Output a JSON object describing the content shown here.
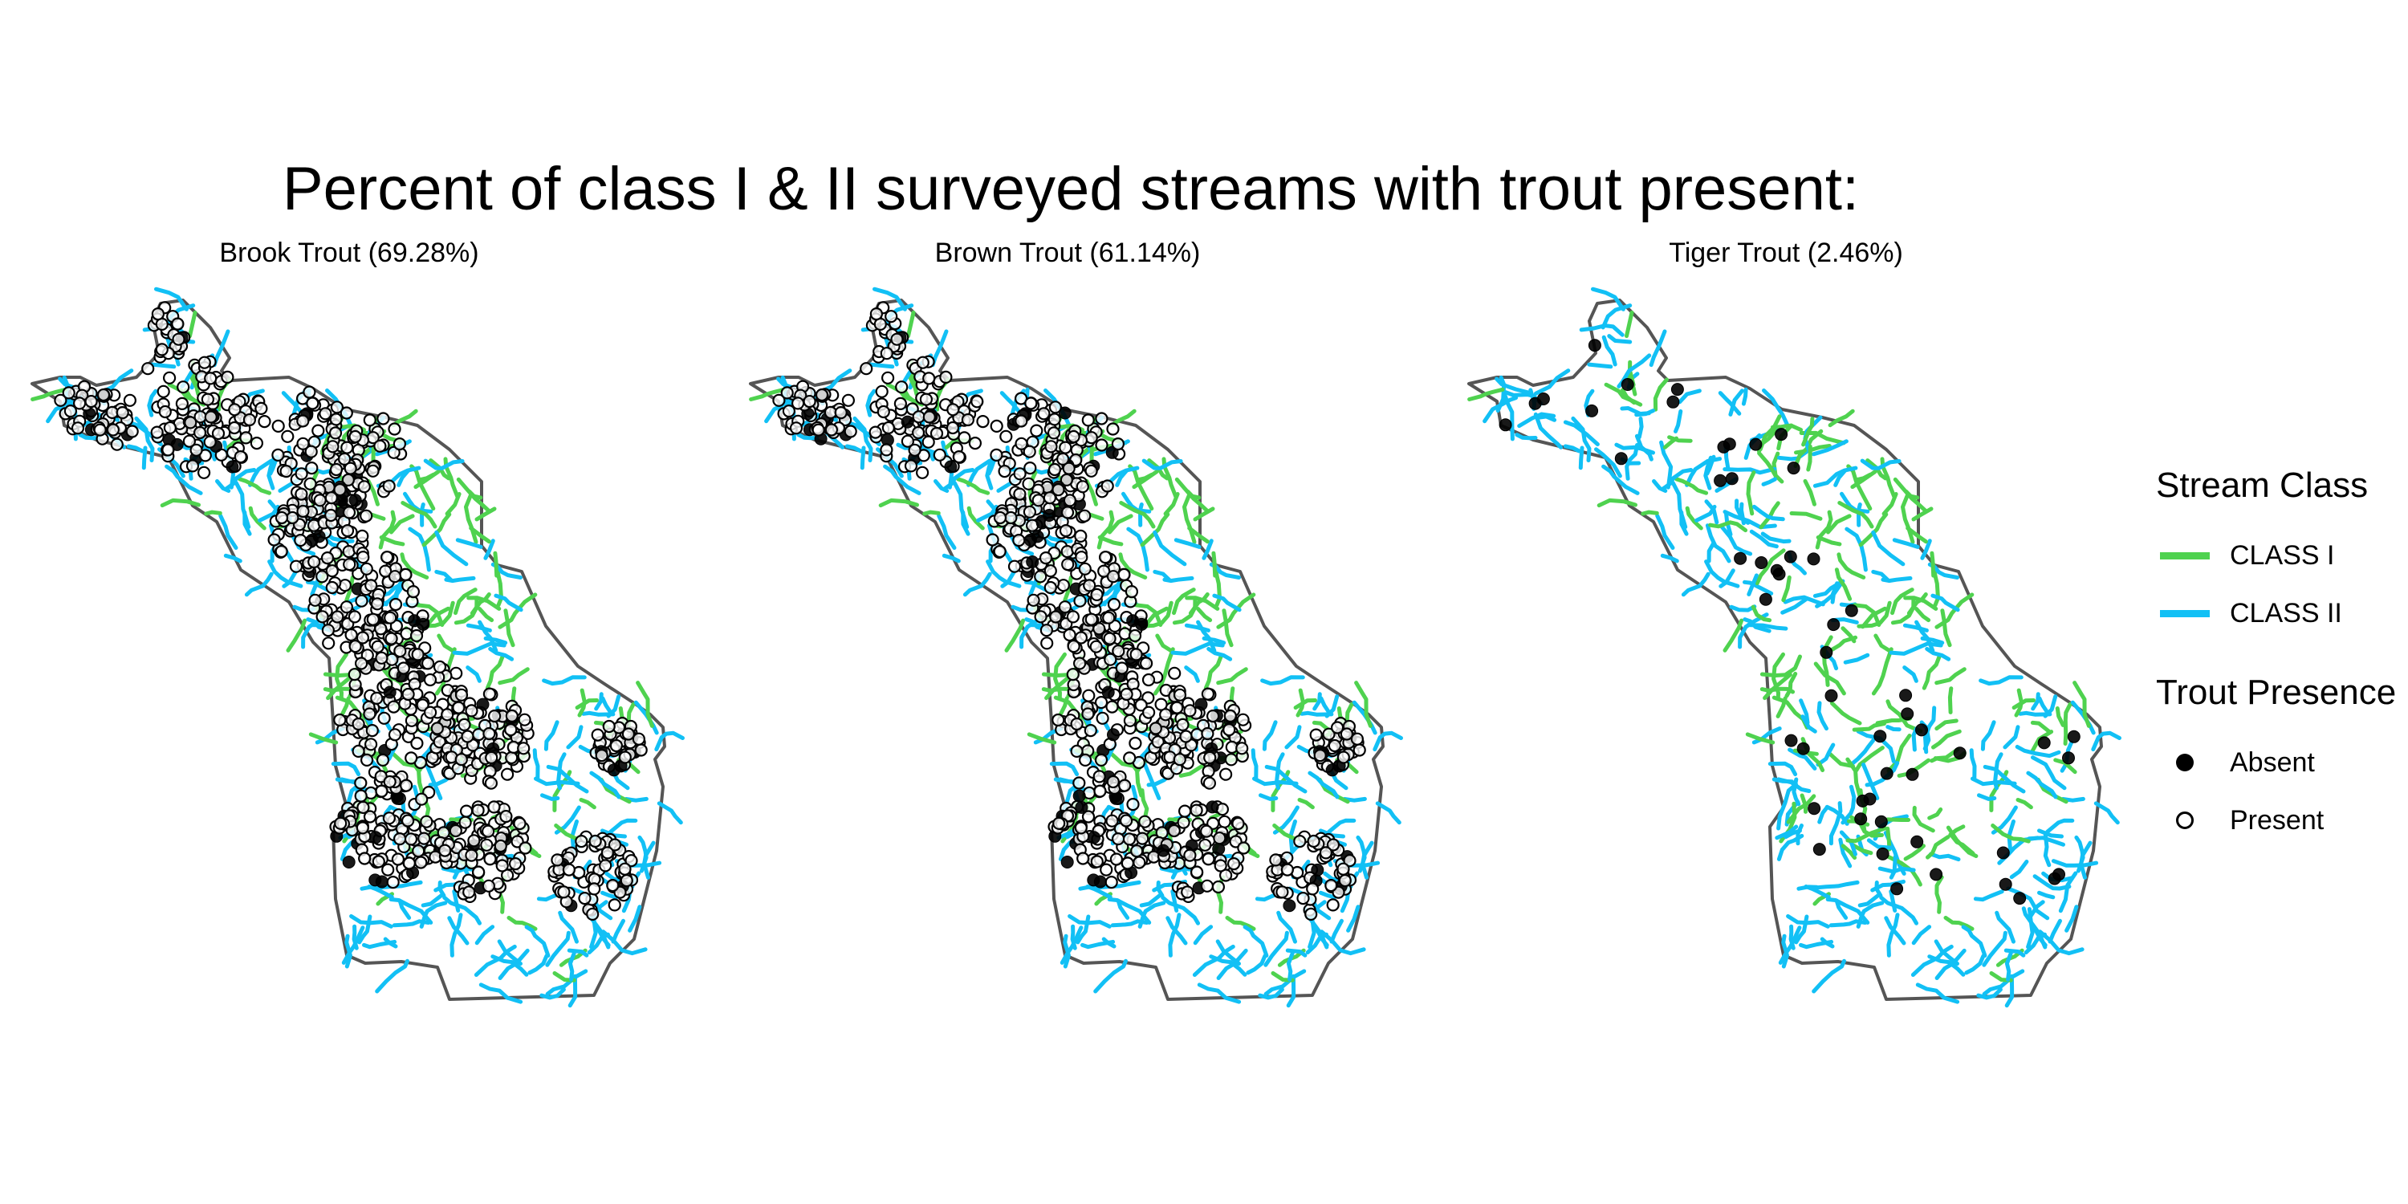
{
  "title": "Percent of class I & II surveyed streams with trout present:",
  "colors": {
    "class_i": "#4fd24f",
    "class_ii": "#12c0f5",
    "outline": "#555555",
    "absent": "#000000",
    "present_fill": "#ffffff"
  },
  "panels": [
    {
      "title": "Brook Trout (69.28%)",
      "present_density": 0.93,
      "absent_share": 0.06
    },
    {
      "title": "Brown Trout (61.14%)",
      "present_density": 0.82,
      "absent_share": 0.09
    },
    {
      "title": "Tiger Trout (2.46%)",
      "present_density": 0.0,
      "absent_share": 1.0
    }
  ],
  "legend": {
    "stream_class_title": "Stream Class",
    "stream_classes": [
      {
        "label": "CLASS I",
        "color": "#4fd24f"
      },
      {
        "label": "CLASS II",
        "color": "#12c0f5"
      }
    ],
    "presence_title": "Trout Presence",
    "presence": [
      {
        "label": "Absent",
        "icon": "filled-circle"
      },
      {
        "label": "Present",
        "icon": "open-circle"
      }
    ]
  }
}
